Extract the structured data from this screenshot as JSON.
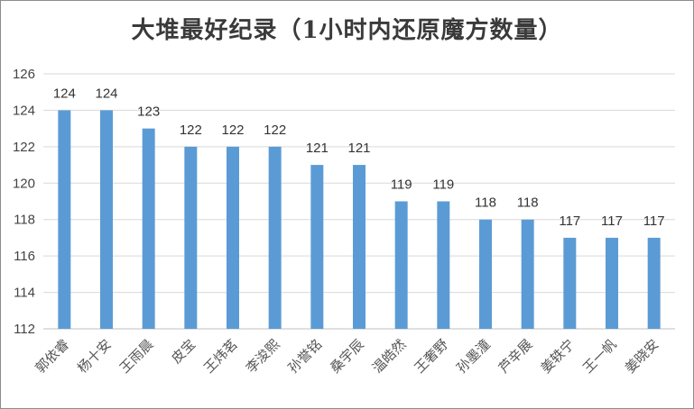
{
  "chart_data": {
    "type": "bar",
    "title": "大堆最好纪录（1小时内还原魔方数量）",
    "xlabel": "",
    "ylabel": "",
    "categories": [
      "郭依睿",
      "杨十安",
      "王雨晨",
      "皮宝",
      "王炜茗",
      "李浚熙",
      "孙誉铭",
      "桑宇辰",
      "温皓然",
      "王奢野",
      "孙墨潼",
      "芦辛展",
      "姜轶宁",
      "王一帆",
      "姜晓安"
    ],
    "values": [
      124,
      124,
      123,
      122,
      122,
      122,
      121,
      121,
      119,
      119,
      118,
      118,
      117,
      117,
      117
    ],
    "ylim": [
      112,
      126
    ],
    "yticks": [
      112,
      114,
      116,
      118,
      120,
      122,
      124,
      126
    ],
    "grid": true,
    "legend": "none",
    "bar_color": "#5b9bd5",
    "grid_color": "#d9d9d9"
  }
}
